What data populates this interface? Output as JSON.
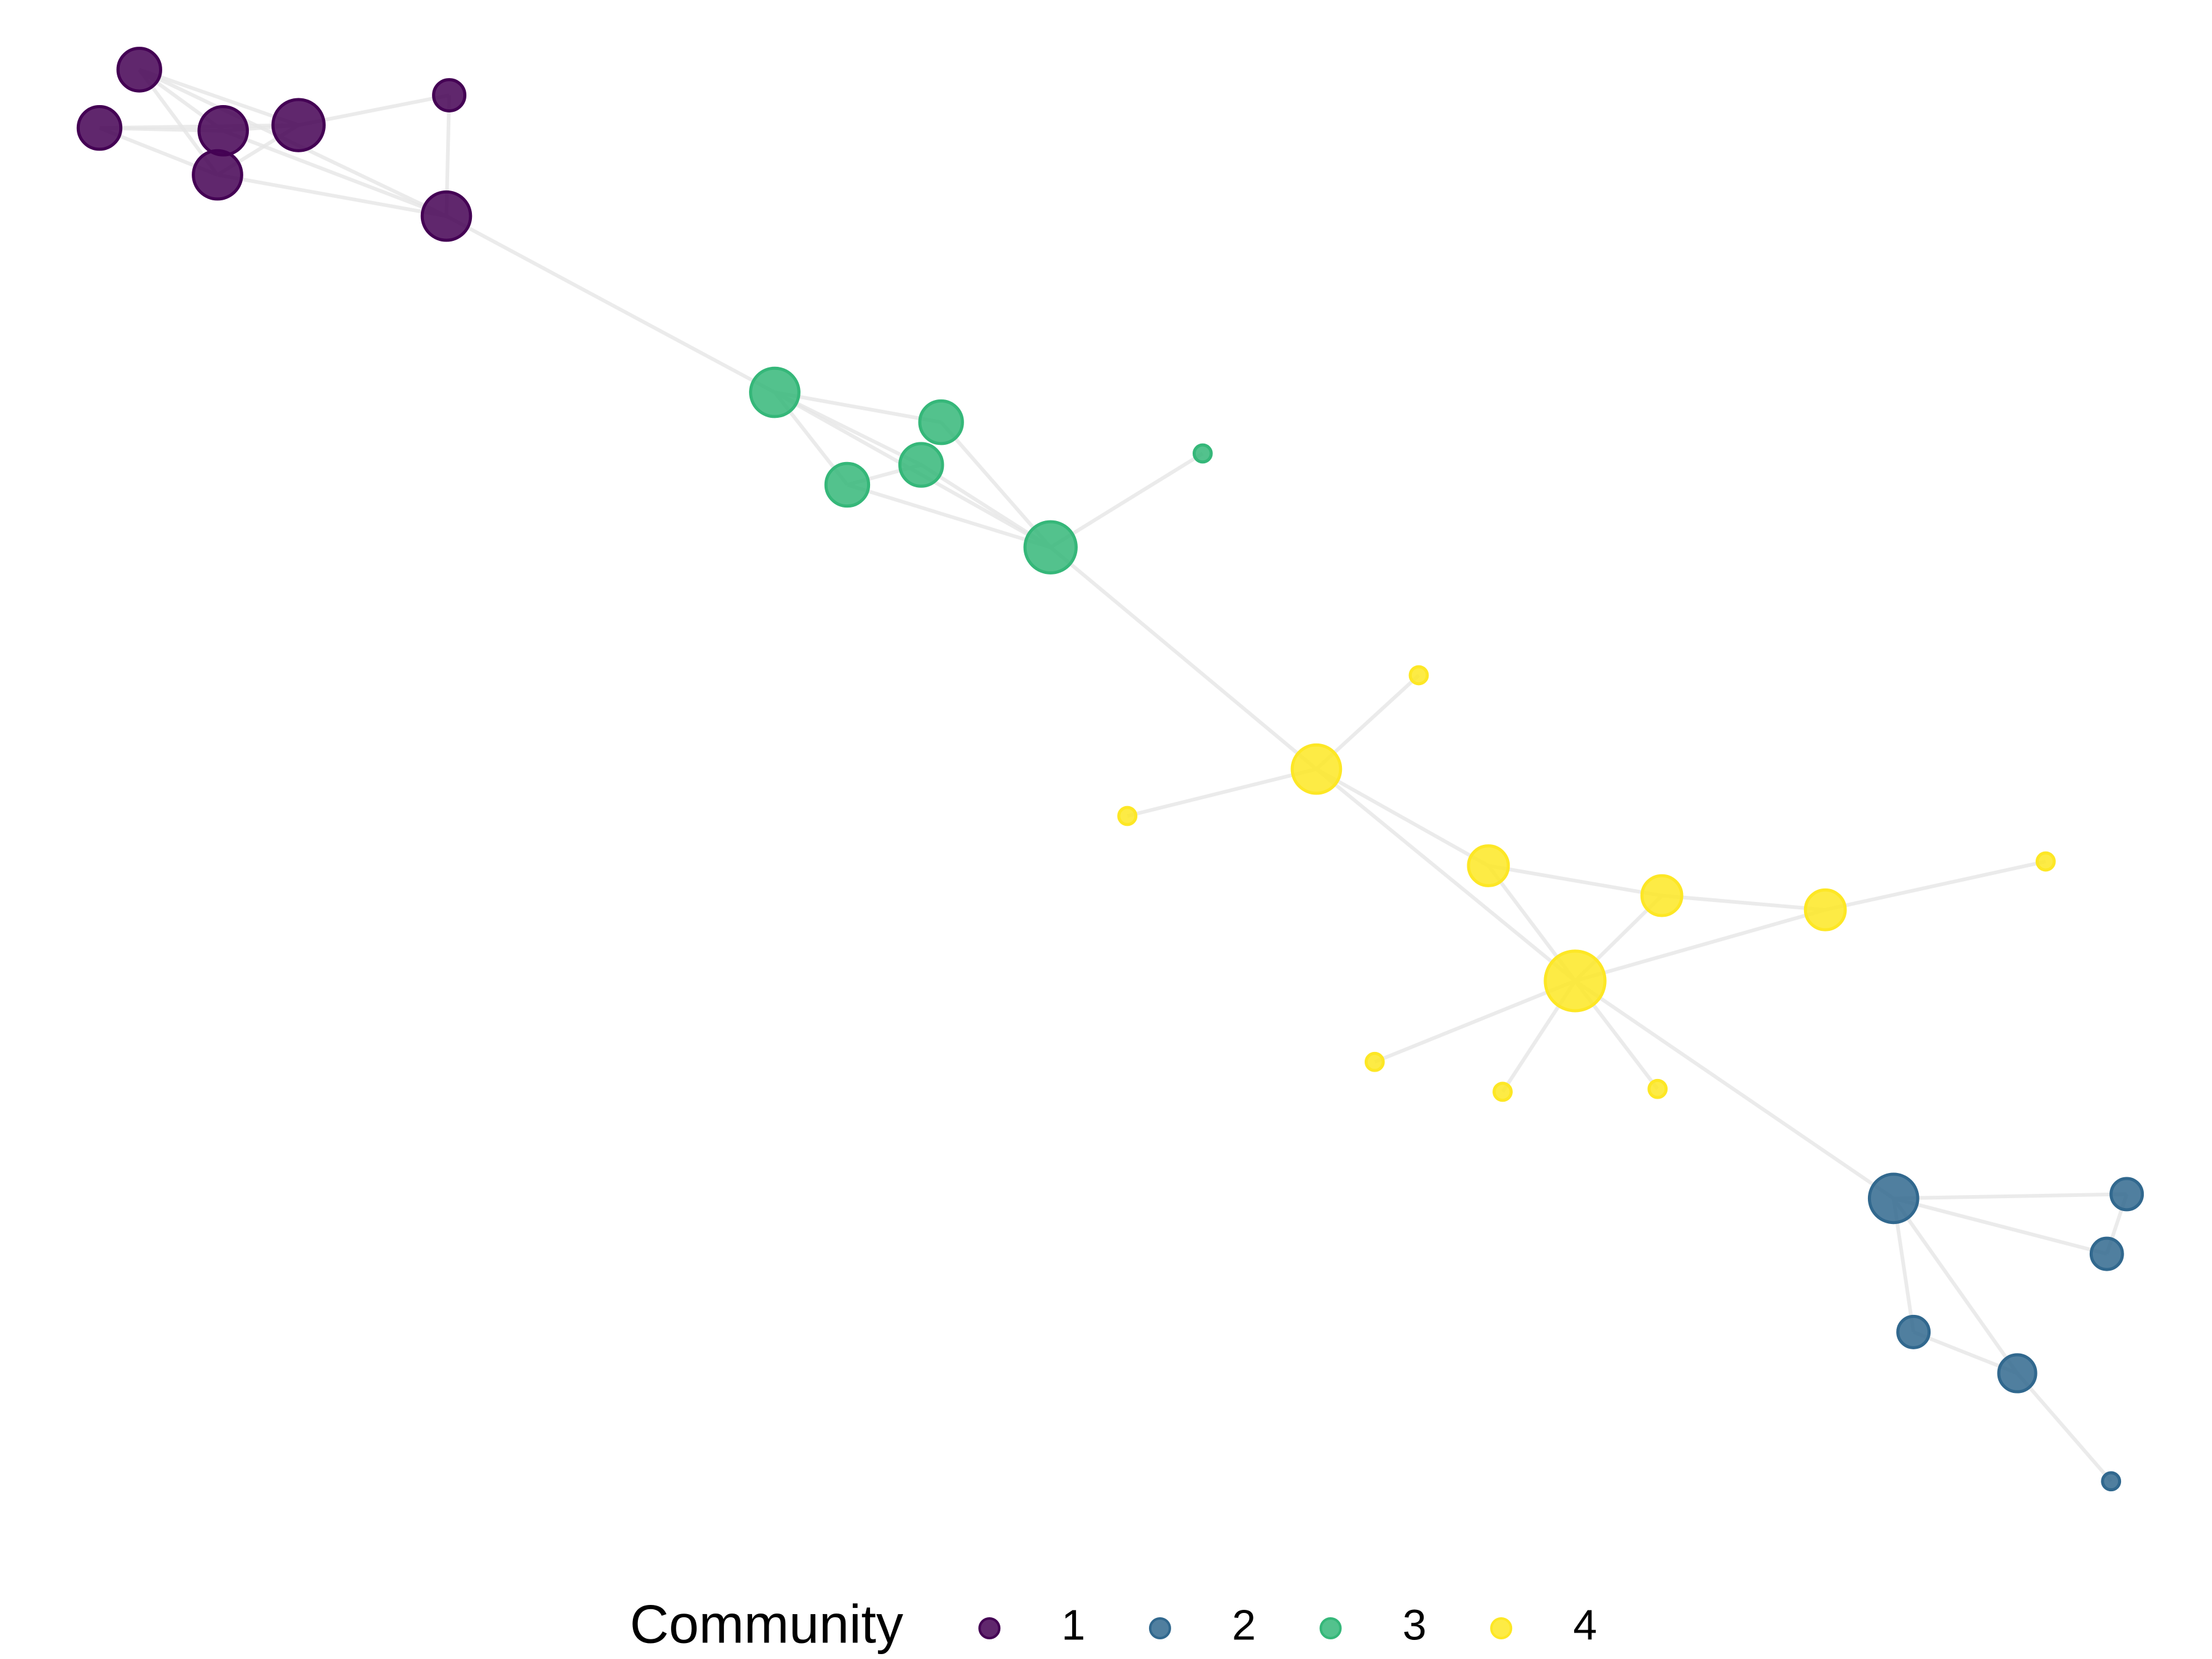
{
  "legend": {
    "title": "Community",
    "items": [
      {
        "label": "1",
        "color": "#440154"
      },
      {
        "label": "2",
        "color": "#31688e"
      },
      {
        "label": "3",
        "color": "#35b779"
      },
      {
        "label": "4",
        "color": "#fde725"
      }
    ]
  }
}
